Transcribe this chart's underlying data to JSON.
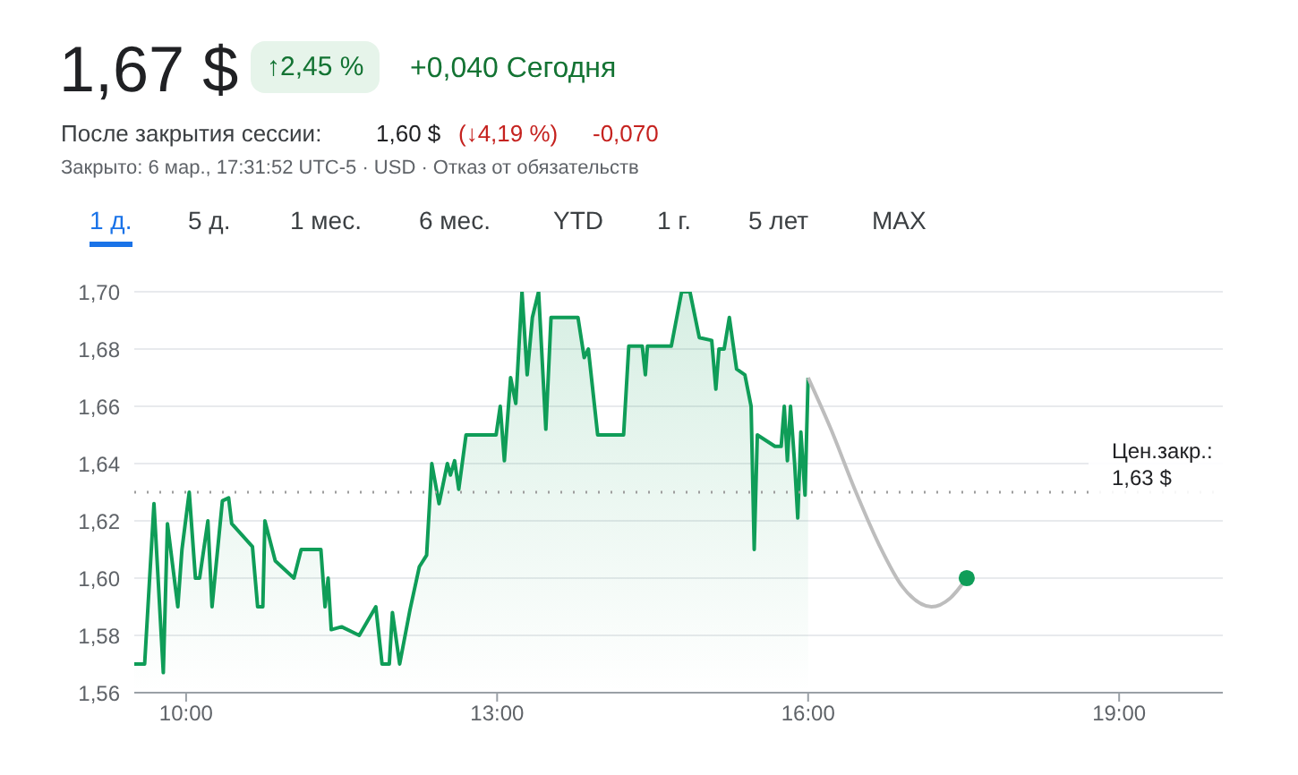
{
  "chart_data": {
    "type": "area",
    "title": "1,67 $",
    "annotations": [
      "↑2,45 %",
      "+0,040 Сегодня",
      "После закрытия сессии:",
      "1,60 $",
      "(↓4,19 %)",
      "-0,070",
      "Закрыто: 6 мар., 17:31:52 UTC-5 · USD · Отказ от обязательств",
      "1 д.",
      "5 д.",
      "1 мес.",
      "6 мес.",
      "YTD",
      "1 г.",
      "5 лет",
      "MAX"
    ],
    "series": [
      {
        "color": "#0f9d58",
        "marker": "none",
        "x": [
          9.5,
          9.6,
          9.69,
          9.78,
          9.82,
          9.92,
          9.96,
          10.03,
          10.09,
          10.13,
          10.21,
          10.25,
          10.35,
          10.41,
          10.44,
          10.64,
          10.69,
          10.74,
          10.76,
          10.86,
          11.04,
          11.11,
          11.3,
          11.34,
          11.37,
          11.4,
          11.5,
          11.67,
          11.83,
          11.89,
          11.96,
          11.99,
          12.06,
          12.16,
          12.25,
          12.32,
          12.37,
          12.44,
          12.52,
          12.55,
          12.59,
          12.63,
          12.7,
          12.99,
          13.03,
          13.07,
          13.13,
          13.18,
          13.24,
          13.29,
          13.34,
          13.4,
          13.47,
          13.52,
          13.78,
          13.84,
          13.88,
          13.97,
          14.22,
          14.27,
          14.4,
          14.43,
          14.45,
          14.68,
          14.78,
          14.86,
          14.95,
          15.07,
          15.11,
          15.14,
          15.19,
          15.24,
          15.31,
          15.39,
          15.45,
          15.48,
          15.51,
          15.68,
          15.74,
          15.77,
          15.8,
          15.83,
          15.87,
          15.9,
          15.93,
          15.97,
          16.0
        ],
        "values": [
          1.57,
          1.57,
          1.626,
          1.567,
          1.619,
          1.59,
          1.61,
          1.63,
          1.6,
          1.6,
          1.62,
          1.59,
          1.627,
          1.628,
          1.619,
          1.611,
          1.59,
          1.59,
          1.62,
          1.606,
          1.6,
          1.61,
          1.61,
          1.59,
          1.6,
          1.582,
          1.583,
          1.58,
          1.59,
          1.57,
          1.57,
          1.588,
          1.57,
          1.589,
          1.604,
          1.608,
          1.64,
          1.626,
          1.64,
          1.636,
          1.641,
          1.631,
          1.65,
          1.65,
          1.66,
          1.641,
          1.67,
          1.661,
          1.7,
          1.671,
          1.691,
          1.7,
          1.652,
          1.691,
          1.691,
          1.677,
          1.68,
          1.65,
          1.65,
          1.681,
          1.681,
          1.671,
          1.681,
          1.681,
          1.7,
          1.7,
          1.684,
          1.683,
          1.666,
          1.68,
          1.68,
          1.691,
          1.673,
          1.671,
          1.66,
          1.61,
          1.65,
          1.646,
          1.646,
          1.66,
          1.641,
          1.66,
          1.64,
          1.621,
          1.651,
          1.629,
          1.67
        ]
      },
      {
        "type": "line",
        "color": "#bdbdbd",
        "marker": "none",
        "x": [
          16.0,
          16.22,
          16.45,
          16.68,
          16.91,
          17.19,
          17.37,
          17.53
        ],
        "values": [
          1.67,
          1.652,
          1.631,
          1.612,
          1.597,
          1.59,
          1.593,
          1.6
        ]
      },
      {
        "type": "scatter",
        "color": "#0f9d58",
        "marker": "circle",
        "x": [
          17.53
        ],
        "values": [
          1.6
        ]
      }
    ],
    "xlim": [
      9.5,
      20
    ],
    "xticks": [
      {
        "value": 10,
        "label": "10:00"
      },
      {
        "value": 13,
        "label": "13:00"
      },
      {
        "value": 16,
        "label": "16:00"
      },
      {
        "value": 19,
        "label": "19:00"
      }
    ],
    "ylim": [
      1.56,
      1.7
    ],
    "yticks": [
      {
        "value": 1.56,
        "label": "1,56"
      },
      {
        "value": 1.58,
        "label": "1,58"
      },
      {
        "value": 1.6,
        "label": "1,60"
      },
      {
        "value": 1.62,
        "label": "1,62"
      },
      {
        "value": 1.64,
        "label": "1,64"
      },
      {
        "value": 1.66,
        "label": "1,66"
      },
      {
        "value": 1.68,
        "label": "1,68"
      },
      {
        "value": 1.7,
        "label": "1,70"
      }
    ],
    "grid": "y",
    "legend": false,
    "ref_lines": [
      {
        "axis": "y",
        "value": 1.63,
        "label": "Цен.закр.:\n1,63 $",
        "color": "#9e9e9e",
        "line_style": "dotted"
      }
    ]
  }
}
